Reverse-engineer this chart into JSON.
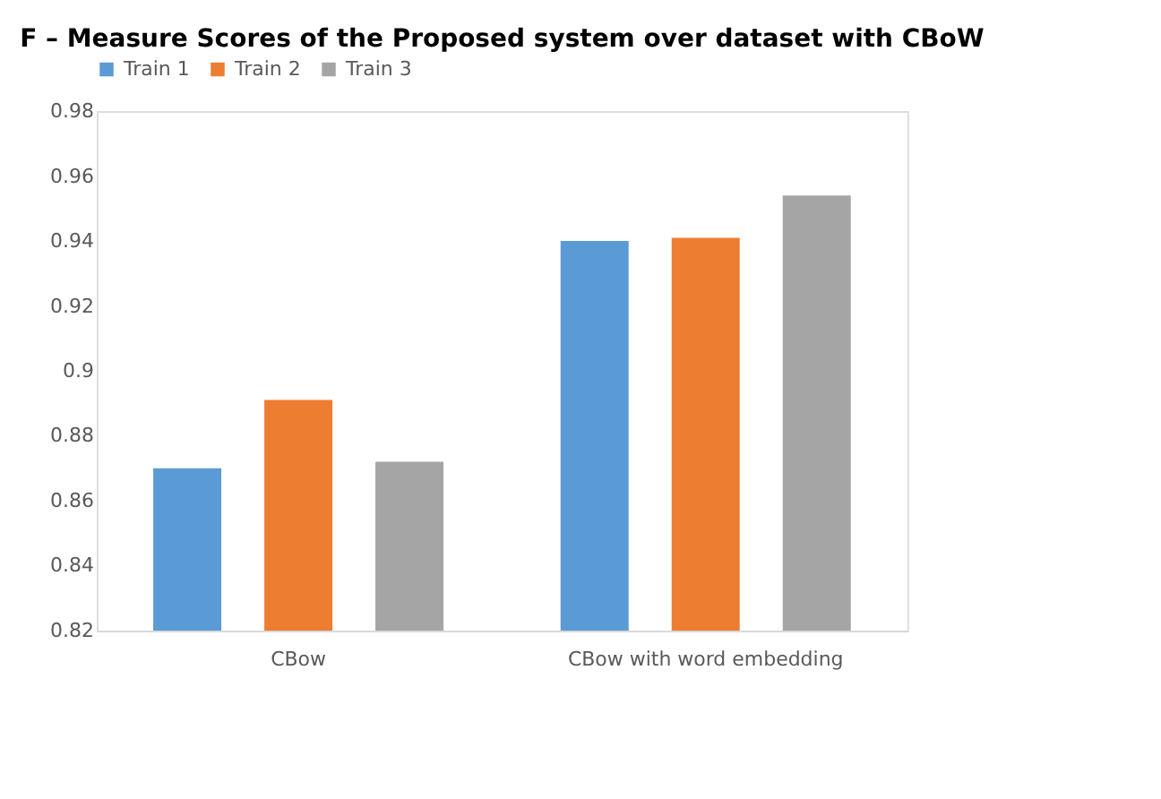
{
  "chart_data": {
    "type": "bar",
    "title": "F – Measure Scores of the Proposed system over dataset with CBoW",
    "categories": [
      "CBow",
      "CBow with word embedding"
    ],
    "series": [
      {
        "name": "Train 1",
        "color": "#5b9bd5",
        "values": [
          0.87,
          0.94
        ]
      },
      {
        "name": "Train 2",
        "color": "#ed7d31",
        "values": [
          0.891,
          0.941
        ]
      },
      {
        "name": "Train 3",
        "color": "#a5a5a5",
        "values": [
          0.872,
          0.954
        ]
      }
    ],
    "ylim": [
      0.82,
      0.98
    ],
    "yticks": [
      0.82,
      0.84,
      0.86,
      0.88,
      0.9,
      0.92,
      0.94,
      0.96,
      0.98
    ],
    "grid": false,
    "legend": "top"
  }
}
